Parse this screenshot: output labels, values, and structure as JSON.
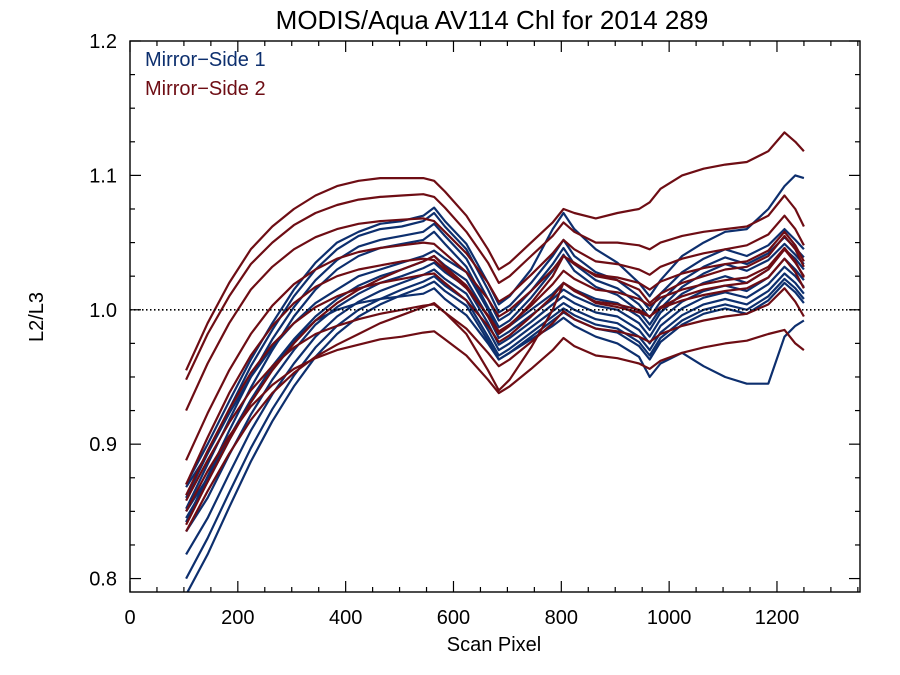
{
  "chart_data": {
    "type": "line",
    "title": "MODIS/Aqua AV114 Chl for 2014 289",
    "xlabel": "Scan Pixel",
    "ylabel": "L2/L3",
    "xlim": [
      0,
      1354
    ],
    "ylim": [
      0.79,
      1.2
    ],
    "xticks": [
      0,
      200,
      400,
      600,
      800,
      1000,
      1200
    ],
    "yticks": [
      0.8,
      0.9,
      1.0,
      1.1,
      1.2
    ],
    "xtick_labels": [
      "0",
      "200",
      "400",
      "600",
      "800",
      "1000",
      "1200"
    ],
    "ytick_labels": [
      "0.8",
      "0.9",
      "1.0",
      "1.1",
      "1.2"
    ],
    "reference_line": 1.0,
    "legend_position": "top-left",
    "legend": [
      {
        "label": "Mirror−Side 1",
        "color": "#0d2f6e"
      },
      {
        "label": "Mirror−Side 2",
        "color": "#6e0d14"
      }
    ],
    "x": [
      104,
      144,
      184,
      224,
      264,
      304,
      344,
      384,
      424,
      464,
      504,
      544,
      564,
      584,
      624,
      664,
      684,
      704,
      744,
      784,
      804,
      824,
      864,
      904,
      944,
      964,
      984,
      1024,
      1064,
      1104,
      1144,
      1184,
      1214,
      1234,
      1250
    ],
    "series": [
      {
        "group": 1,
        "values": [
          0.868,
          0.893,
          0.923,
          0.95,
          0.972,
          0.99,
          1.005,
          1.015,
          1.025,
          1.03,
          1.035,
          1.04,
          1.044,
          1.038,
          1.028,
          1.0,
          0.983,
          0.988,
          1.0,
          1.012,
          1.02,
          1.015,
          1.008,
          1.005,
          0.995,
          0.985,
          0.998,
          1.012,
          1.02,
          1.025,
          1.02,
          1.03,
          1.045,
          1.038,
          1.03
        ]
      },
      {
        "group": 1,
        "values": [
          0.85,
          0.875,
          0.905,
          0.933,
          0.958,
          0.978,
          0.995,
          1.008,
          1.018,
          1.025,
          1.03,
          1.036,
          1.04,
          1.033,
          1.022,
          0.995,
          0.979,
          0.984,
          0.996,
          1.008,
          1.015,
          1.01,
          1.003,
          1.0,
          0.99,
          0.98,
          0.993,
          1.006,
          1.014,
          1.018,
          1.014,
          1.024,
          1.038,
          1.03,
          1.022
        ]
      },
      {
        "group": 1,
        "values": [
          0.835,
          0.86,
          0.892,
          0.922,
          0.948,
          0.97,
          0.989,
          1.002,
          1.012,
          1.02,
          1.025,
          1.031,
          1.035,
          1.028,
          1.017,
          0.99,
          0.974,
          0.979,
          0.991,
          1.004,
          1.01,
          1.005,
          0.998,
          0.995,
          0.985,
          0.975,
          0.988,
          1.001,
          1.009,
          1.013,
          1.009,
          1.019,
          1.032,
          1.025,
          1.017
        ]
      },
      {
        "group": 1,
        "values": [
          0.818,
          0.845,
          0.878,
          0.91,
          0.937,
          0.96,
          0.98,
          0.995,
          1.006,
          1.014,
          1.02,
          1.026,
          1.03,
          1.023,
          1.012,
          0.985,
          0.97,
          0.975,
          0.987,
          0.999,
          1.005,
          1.0,
          0.993,
          0.99,
          0.98,
          0.97,
          0.983,
          0.996,
          1.004,
          1.008,
          1.004,
          1.014,
          1.027,
          1.02,
          1.012
        ]
      },
      {
        "group": 1,
        "values": [
          0.8,
          0.83,
          0.864,
          0.897,
          0.926,
          0.951,
          0.972,
          0.988,
          1.0,
          1.008,
          1.015,
          1.021,
          1.025,
          1.018,
          1.007,
          0.98,
          0.966,
          0.971,
          0.983,
          0.995,
          1.001,
          0.996,
          0.989,
          0.986,
          0.976,
          0.966,
          0.979,
          0.992,
          1.0,
          1.004,
          1.0,
          1.01,
          1.023,
          1.016,
          1.008
        ]
      },
      {
        "group": 1,
        "values": [
          0.788,
          0.818,
          0.853,
          0.887,
          0.917,
          0.943,
          0.965,
          0.982,
          0.995,
          1.004,
          1.011,
          1.017,
          1.021,
          1.014,
          1.003,
          0.977,
          0.963,
          0.968,
          0.98,
          0.992,
          0.998,
          0.993,
          0.986,
          0.983,
          0.973,
          0.963,
          0.976,
          0.989,
          0.997,
          1.001,
          0.997,
          1.007,
          1.02,
          1.013,
          1.005
        ]
      },
      {
        "group": 1,
        "values": [
          0.86,
          0.893,
          0.926,
          0.958,
          0.985,
          1.01,
          1.03,
          1.045,
          1.055,
          1.06,
          1.062,
          1.066,
          1.072,
          1.062,
          1.045,
          1.015,
          0.998,
          1.003,
          1.02,
          1.04,
          1.052,
          1.04,
          1.028,
          1.022,
          1.01,
          1.0,
          1.012,
          1.028,
          1.038,
          1.045,
          1.04,
          1.048,
          1.06,
          1.052,
          1.045
        ]
      },
      {
        "group": 1,
        "values": [
          0.852,
          0.885,
          0.918,
          0.95,
          0.978,
          1.002,
          1.022,
          1.037,
          1.047,
          1.052,
          1.055,
          1.058,
          1.064,
          1.055,
          1.038,
          1.008,
          0.992,
          0.997,
          1.014,
          1.034,
          1.046,
          1.034,
          1.022,
          1.016,
          1.004,
          0.994,
          1.006,
          1.022,
          1.032,
          1.039,
          1.034,
          1.042,
          1.054,
          1.046,
          1.039
        ]
      },
      {
        "group": 1,
        "values": [
          0.842,
          0.876,
          0.91,
          0.942,
          0.97,
          0.995,
          1.015,
          1.03,
          1.04,
          1.046,
          1.049,
          1.052,
          1.058,
          1.049,
          1.032,
          1.002,
          0.987,
          0.992,
          1.009,
          1.029,
          1.041,
          1.029,
          1.017,
          1.011,
          0.999,
          0.989,
          1.001,
          1.017,
          1.027,
          1.034,
          1.029,
          1.037,
          1.049,
          1.041,
          1.034
        ]
      },
      {
        "group": 1,
        "values": [
          0.87,
          0.9,
          0.932,
          0.963,
          0.99,
          1.015,
          1.035,
          1.05,
          1.058,
          1.064,
          1.066,
          1.07,
          1.076,
          1.066,
          1.049,
          1.02,
          1.004,
          1.01,
          1.03,
          1.06,
          1.072,
          1.06,
          1.045,
          1.035,
          1.02,
          1.01,
          1.022,
          1.04,
          1.05,
          1.058,
          1.06,
          1.075,
          1.092,
          1.1,
          1.098
        ]
      },
      {
        "group": 1,
        "values": [
          0.845,
          0.872,
          0.903,
          0.932,
          0.956,
          0.977,
          0.992,
          1.0,
          1.005,
          1.008,
          1.01,
          1.012,
          1.016,
          1.008,
          0.996,
          0.975,
          0.963,
          0.968,
          0.978,
          0.988,
          0.994,
          0.988,
          0.98,
          0.975,
          0.965,
          0.95,
          0.96,
          0.968,
          0.958,
          0.95,
          0.945,
          0.945,
          0.98,
          0.988,
          0.992
        ]
      },
      {
        "group": 2,
        "values": [
          0.955,
          0.99,
          1.02,
          1.045,
          1.062,
          1.075,
          1.085,
          1.092,
          1.096,
          1.098,
          1.098,
          1.098,
          1.096,
          1.088,
          1.07,
          1.045,
          1.03,
          1.035,
          1.05,
          1.065,
          1.075,
          1.072,
          1.068,
          1.072,
          1.075,
          1.08,
          1.09,
          1.1,
          1.105,
          1.108,
          1.11,
          1.118,
          1.132,
          1.125,
          1.118
        ]
      },
      {
        "group": 2,
        "values": [
          0.948,
          0.982,
          1.01,
          1.034,
          1.05,
          1.063,
          1.072,
          1.078,
          1.082,
          1.084,
          1.085,
          1.086,
          1.084,
          1.076,
          1.058,
          1.035,
          1.02,
          1.025,
          1.04,
          1.055,
          1.065,
          1.058,
          1.05,
          1.05,
          1.048,
          1.045,
          1.05,
          1.055,
          1.058,
          1.06,
          1.062,
          1.07,
          1.085,
          1.075,
          1.062
        ]
      },
      {
        "group": 2,
        "values": [
          0.925,
          0.96,
          0.99,
          1.015,
          1.032,
          1.045,
          1.054,
          1.06,
          1.064,
          1.066,
          1.067,
          1.068,
          1.066,
          1.058,
          1.042,
          1.02,
          1.006,
          1.011,
          1.026,
          1.042,
          1.052,
          1.045,
          1.036,
          1.034,
          1.03,
          1.026,
          1.032,
          1.038,
          1.042,
          1.045,
          1.048,
          1.056,
          1.07,
          1.06,
          1.048
        ]
      },
      {
        "group": 2,
        "values": [
          0.888,
          0.923,
          0.955,
          0.982,
          1.003,
          1.019,
          1.03,
          1.038,
          1.043,
          1.046,
          1.048,
          1.05,
          1.049,
          1.042,
          1.028,
          1.008,
          0.995,
          1.0,
          1.014,
          1.03,
          1.04,
          1.034,
          1.026,
          1.024,
          1.02,
          1.015,
          1.021,
          1.027,
          1.031,
          1.034,
          1.036,
          1.044,
          1.058,
          1.048,
          1.036
        ]
      },
      {
        "group": 2,
        "values": [
          0.87,
          0.905,
          0.938,
          0.966,
          0.988,
          1.005,
          1.017,
          1.025,
          1.03,
          1.033,
          1.036,
          1.038,
          1.037,
          1.03,
          1.016,
          0.996,
          0.984,
          0.989,
          1.003,
          1.019,
          1.029,
          1.023,
          1.015,
          1.013,
          1.008,
          1.003,
          1.009,
          1.015,
          1.019,
          1.022,
          1.024,
          1.032,
          1.046,
          1.036,
          1.024
        ]
      },
      {
        "group": 2,
        "values": [
          0.862,
          0.895,
          0.926,
          0.953,
          0.974,
          0.99,
          1.002,
          1.01,
          1.016,
          1.02,
          1.023,
          1.026,
          1.027,
          1.02,
          1.007,
          0.988,
          0.976,
          0.981,
          0.995,
          1.01,
          1.02,
          1.014,
          1.006,
          1.004,
          1.0,
          0.995,
          1.001,
          1.007,
          1.011,
          1.014,
          1.016,
          1.024,
          1.038,
          1.028,
          1.016
        ]
      },
      {
        "group": 2,
        "values": [
          0.858,
          0.888,
          0.916,
          0.94,
          0.958,
          0.972,
          0.982,
          0.988,
          0.993,
          0.997,
          1.0,
          1.003,
          1.004,
          0.998,
          0.986,
          0.968,
          0.958,
          0.963,
          0.976,
          0.99,
          0.999,
          0.993,
          0.986,
          0.984,
          0.98,
          0.976,
          0.982,
          0.988,
          0.992,
          0.995,
          0.997,
          1.004,
          1.016,
          1.006,
          0.995
        ]
      },
      {
        "group": 2,
        "values": [
          0.85,
          0.88,
          0.906,
          0.928,
          0.944,
          0.956,
          0.964,
          0.97,
          0.974,
          0.978,
          0.98,
          0.983,
          0.984,
          0.978,
          0.966,
          0.948,
          0.938,
          0.943,
          0.956,
          0.97,
          0.979,
          0.973,
          0.966,
          0.964,
          0.96,
          0.956,
          0.962,
          0.968,
          0.972,
          0.975,
          0.977,
          0.982,
          0.985,
          0.975,
          0.97
        ]
      },
      {
        "group": 2,
        "values": [
          0.835,
          0.865,
          0.893,
          0.918,
          0.938,
          0.953,
          0.965,
          0.974,
          0.982,
          0.99,
          0.996,
          1.002,
          1.005,
          0.998,
          0.982,
          0.955,
          0.94,
          0.948,
          0.972,
          1.0,
          1.02,
          1.015,
          1.005,
          1.002,
          0.998,
          0.995,
          1.002,
          1.01,
          1.015,
          1.018,
          1.02,
          1.03,
          1.045,
          1.035,
          1.025
        ]
      },
      {
        "group": 2,
        "values": [
          0.84,
          0.872,
          0.903,
          0.931,
          0.955,
          0.975,
          0.992,
          1.005,
          1.015,
          1.023,
          1.03,
          1.036,
          1.04,
          1.032,
          1.018,
          0.995,
          0.982,
          0.988,
          1.005,
          1.025,
          1.04,
          1.035,
          1.025,
          1.022,
          1.015,
          1.005,
          1.012,
          1.02,
          1.025,
          1.03,
          1.032,
          1.04,
          1.055,
          1.045,
          1.032
        ]
      }
    ]
  }
}
